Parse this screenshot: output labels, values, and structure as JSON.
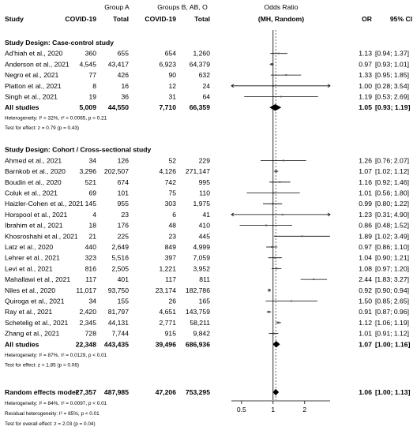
{
  "chart_data": {
    "type": "forest",
    "header": {
      "group_a": "Group A",
      "group_b": "Groups B, AB, O",
      "odds_ratio_line1": "Odds Ratio",
      "odds_ratio_line2": "(MH, Random)",
      "study": "Study",
      "covid_a": "COVID-19",
      "total_a": "Total",
      "covid_b": "COVID-19",
      "total_b": "Total",
      "or": "OR",
      "ci": "95% CI"
    },
    "x_scale": "log",
    "xlim": [
      0.4,
      3.5
    ],
    "ticks": [
      {
        "value": 0.5,
        "label": "0.5"
      },
      {
        "value": 1,
        "label": "1"
      },
      {
        "value": 2,
        "label": "2"
      }
    ],
    "sections": [
      {
        "title": "Study Design: Case-control study",
        "studies": [
          {
            "name": "Ad'hiah et al., 2020",
            "a_events": "360",
            "a_total": "655",
            "b_events": "654",
            "b_total": "1,260",
            "or": 1.13,
            "lo": 0.94,
            "hi": 1.37,
            "or_text": "1.13",
            "ci_text": "[0.94; 1.37]"
          },
          {
            "name": "Anderson et al., 2021",
            "a_events": "4,545",
            "a_total": "43,417",
            "b_events": "6,923",
            "b_total": "64,379",
            "or": 0.97,
            "lo": 0.93,
            "hi": 1.01,
            "or_text": "0.97",
            "ci_text": "[0.93; 1.01]"
          },
          {
            "name": "Negro et al., 2021",
            "a_events": "77",
            "a_total": "426",
            "b_events": "90",
            "b_total": "632",
            "or": 1.33,
            "lo": 0.95,
            "hi": 1.85,
            "or_text": "1.33",
            "ci_text": "[0.95; 1.85]"
          },
          {
            "name": "Platton et al., 2021",
            "a_events": "8",
            "a_total": "16",
            "b_events": "12",
            "b_total": "24",
            "or": 1.0,
            "lo": 0.28,
            "hi": 3.54,
            "or_text": "1.00",
            "ci_text": "[0.28; 3.54]"
          },
          {
            "name": "Singh et al., 2021",
            "a_events": "19",
            "a_total": "36",
            "b_events": "31",
            "b_total": "64",
            "or": 1.19,
            "lo": 0.53,
            "hi": 2.69,
            "or_text": "1.19",
            "ci_text": "[0.53; 2.69]"
          }
        ],
        "pooled": {
          "name": "All studies",
          "a_events": "5,009",
          "a_total": "44,550",
          "b_events": "7,710",
          "b_total": "66,359",
          "or": 1.05,
          "lo": 0.93,
          "hi": 1.19,
          "or_text": "1.05",
          "ci_text": "[0.93; 1.19]"
        },
        "heterogeneity": "Heterogeneity: I² = 32%, τ² = 0.0065, p = 0.21",
        "test": "Test for effect: z = 0.79 (p = 0.43)"
      },
      {
        "title": "Study Design: Cohort / Cross-sectional study",
        "studies": [
          {
            "name": "Ahmed et al., 2021",
            "a_events": "34",
            "a_total": "126",
            "b_events": "52",
            "b_total": "229",
            "or": 1.26,
            "lo": 0.76,
            "hi": 2.07,
            "or_text": "1.26",
            "ci_text": "[0.76; 2.07]"
          },
          {
            "name": "Barnkob et al., 2020",
            "a_events": "3,296",
            "a_total": "202,507",
            "b_events": "4,126",
            "b_total": "271,147",
            "or": 1.07,
            "lo": 1.02,
            "hi": 1.12,
            "or_text": "1.07",
            "ci_text": "[1.02; 1.12]"
          },
          {
            "name": "Boudin et al., 2020",
            "a_events": "521",
            "a_total": "674",
            "b_events": "742",
            "b_total": "995",
            "or": 1.16,
            "lo": 0.92,
            "hi": 1.46,
            "or_text": "1.16",
            "ci_text": "[0.92; 1.46]"
          },
          {
            "name": "Coluk et al., 2021",
            "a_events": "69",
            "a_total": "101",
            "b_events": "75",
            "b_total": "110",
            "or": 1.01,
            "lo": 0.56,
            "hi": 1.8,
            "or_text": "1.01",
            "ci_text": "[0.56; 1.80]"
          },
          {
            "name": "Haizler-Cohen et al., 2021",
            "a_events": "145",
            "a_total": "955",
            "b_events": "303",
            "b_total": "1,975",
            "or": 0.99,
            "lo": 0.8,
            "hi": 1.22,
            "or_text": "0.99",
            "ci_text": "[0.80; 1.22]"
          },
          {
            "name": "Horspool et al., 2021",
            "a_events": "4",
            "a_total": "23",
            "b_events": "6",
            "b_total": "41",
            "or": 1.23,
            "lo": 0.31,
            "hi": 4.9,
            "or_text": "1.23",
            "ci_text": "[0.31; 4.90]"
          },
          {
            "name": "Ibrahim et al., 2021",
            "a_events": "18",
            "a_total": "176",
            "b_events": "48",
            "b_total": "410",
            "or": 0.86,
            "lo": 0.48,
            "hi": 1.52,
            "or_text": "0.86",
            "ci_text": "[0.48; 1.52]"
          },
          {
            "name": "Khosroshahi et al., 2021",
            "a_events": "21",
            "a_total": "225",
            "b_events": "23",
            "b_total": "445",
            "or": 1.89,
            "lo": 1.02,
            "hi": 3.49,
            "or_text": "1.89",
            "ci_text": "[1.02; 3.49]"
          },
          {
            "name": "Latz et al., 2020",
            "a_events": "440",
            "a_total": "2,649",
            "b_events": "849",
            "b_total": "4,999",
            "or": 0.97,
            "lo": 0.86,
            "hi": 1.1,
            "or_text": "0.97",
            "ci_text": "[0.86; 1.10]"
          },
          {
            "name": "Lehrer et al., 2021",
            "a_events": "323",
            "a_total": "5,516",
            "b_events": "397",
            "b_total": "7,059",
            "or": 1.04,
            "lo": 0.9,
            "hi": 1.21,
            "or_text": "1.04",
            "ci_text": "[0.90; 1.21]"
          },
          {
            "name": "Levi et al., 2021",
            "a_events": "816",
            "a_total": "2,505",
            "b_events": "1,221",
            "b_total": "3,952",
            "or": 1.08,
            "lo": 0.97,
            "hi": 1.2,
            "or_text": "1.08",
            "ci_text": "[0.97; 1.20]"
          },
          {
            "name": "Mahallawi et al., 2021",
            "a_events": "117",
            "a_total": "401",
            "b_events": "117",
            "b_total": "811",
            "or": 2.44,
            "lo": 1.83,
            "hi": 3.27,
            "or_text": "2.44",
            "ci_text": "[1.83; 3.27]"
          },
          {
            "name": "Niles et al., 2020",
            "a_events": "11,017",
            "a_total": "93,750",
            "b_events": "23,174",
            "b_total": "182,786",
            "or": 0.92,
            "lo": 0.9,
            "hi": 0.94,
            "or_text": "0.92",
            "ci_text": "[0.90; 0.94]"
          },
          {
            "name": "Quiroga et al., 2021",
            "a_events": "34",
            "a_total": "155",
            "b_events": "26",
            "b_total": "165",
            "or": 1.5,
            "lo": 0.85,
            "hi": 2.65,
            "or_text": "1.50",
            "ci_text": "[0.85; 2.65]"
          },
          {
            "name": "Ray et al., 2021",
            "a_events": "2,420",
            "a_total": "81,797",
            "b_events": "4,651",
            "b_total": "143,759",
            "or": 0.91,
            "lo": 0.87,
            "hi": 0.96,
            "or_text": "0.91",
            "ci_text": "[0.87; 0.96]"
          },
          {
            "name": "Schetelig et al., 2021",
            "a_events": "2,345",
            "a_total": "44,131",
            "b_events": "2,771",
            "b_total": "58,211",
            "or": 1.12,
            "lo": 1.06,
            "hi": 1.19,
            "or_text": "1.12",
            "ci_text": "[1.06; 1.19]"
          },
          {
            "name": "Zhang et al., 2021",
            "a_events": "728",
            "a_total": "7,744",
            "b_events": "915",
            "b_total": "9,842",
            "or": 1.01,
            "lo": 0.91,
            "hi": 1.12,
            "or_text": "1.01",
            "ci_text": "[0.91; 1.12]"
          }
        ],
        "pooled": {
          "name": "All studies",
          "a_events": "22,348",
          "a_total": "443,435",
          "b_events": "39,496",
          "b_total": "686,936",
          "or": 1.07,
          "lo": 1.0,
          "hi": 1.16,
          "or_text": "1.07",
          "ci_text": "[1.00; 1.16]"
        },
        "heterogeneity": "Heterogeneity: I² = 87%, τ² = 0.0129, p < 0.01",
        "test": "Test for effect: z = 1.85 (p = 0.06)"
      }
    ],
    "overall": {
      "name": "Random effects model",
      "a_events": "27,357",
      "a_total": "487,985",
      "b_events": "47,206",
      "b_total": "753,295",
      "or": 1.06,
      "lo": 1.0,
      "hi": 1.13,
      "or_text": "1.06",
      "ci_text": "[1.00; 1.13]",
      "heterogeneity": "Heterogeneity: I² = 84%, τ² = 0.0097, p < 0.01",
      "residual": "Residual heterogeneity: I² = 85%, p < 0.01",
      "test": "Test for overall effect: z = 2.03 (p = 0.04)"
    },
    "colors": {
      "text": "#000000",
      "ci_line": "#000000",
      "square": "#555555",
      "diamond": "#000000",
      "rule": "#000000"
    }
  }
}
